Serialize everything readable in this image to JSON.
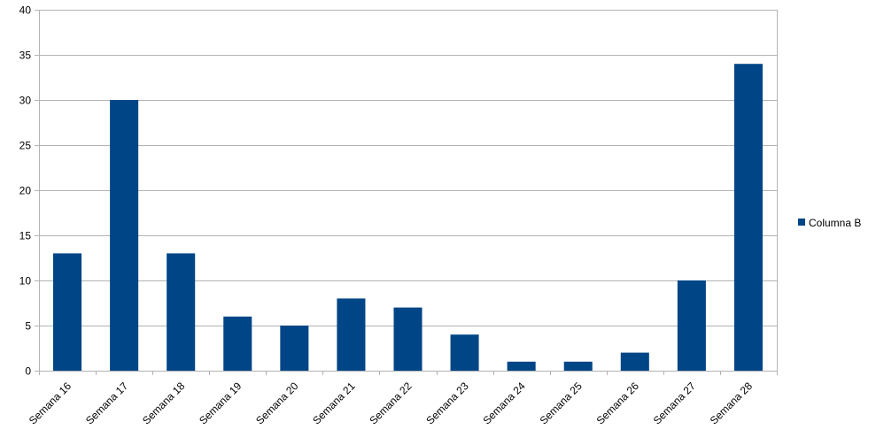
{
  "chart_data": {
    "type": "bar",
    "title": "",
    "xlabel": "",
    "ylabel": "",
    "categories": [
      "Semana 16",
      "Semana 17",
      "Semana 18",
      "Semana 19",
      "Semana 20",
      "Semana 21",
      "Semana 22",
      "Semana 23",
      "Semana 24",
      "Semana 25",
      "Semana 26",
      "Semana 27",
      "Semana 28"
    ],
    "series": [
      {
        "name": "Columna B",
        "color": "#004586",
        "values": [
          13,
          30,
          13,
          6,
          5,
          8,
          7,
          4,
          1,
          1,
          2,
          10,
          34
        ]
      }
    ],
    "ylim": [
      0,
      40
    ],
    "yticks": [
      0,
      5,
      10,
      15,
      20,
      25,
      30,
      35,
      40
    ],
    "grid": true,
    "gridColor": "#b3b3b3",
    "legend": "right"
  }
}
